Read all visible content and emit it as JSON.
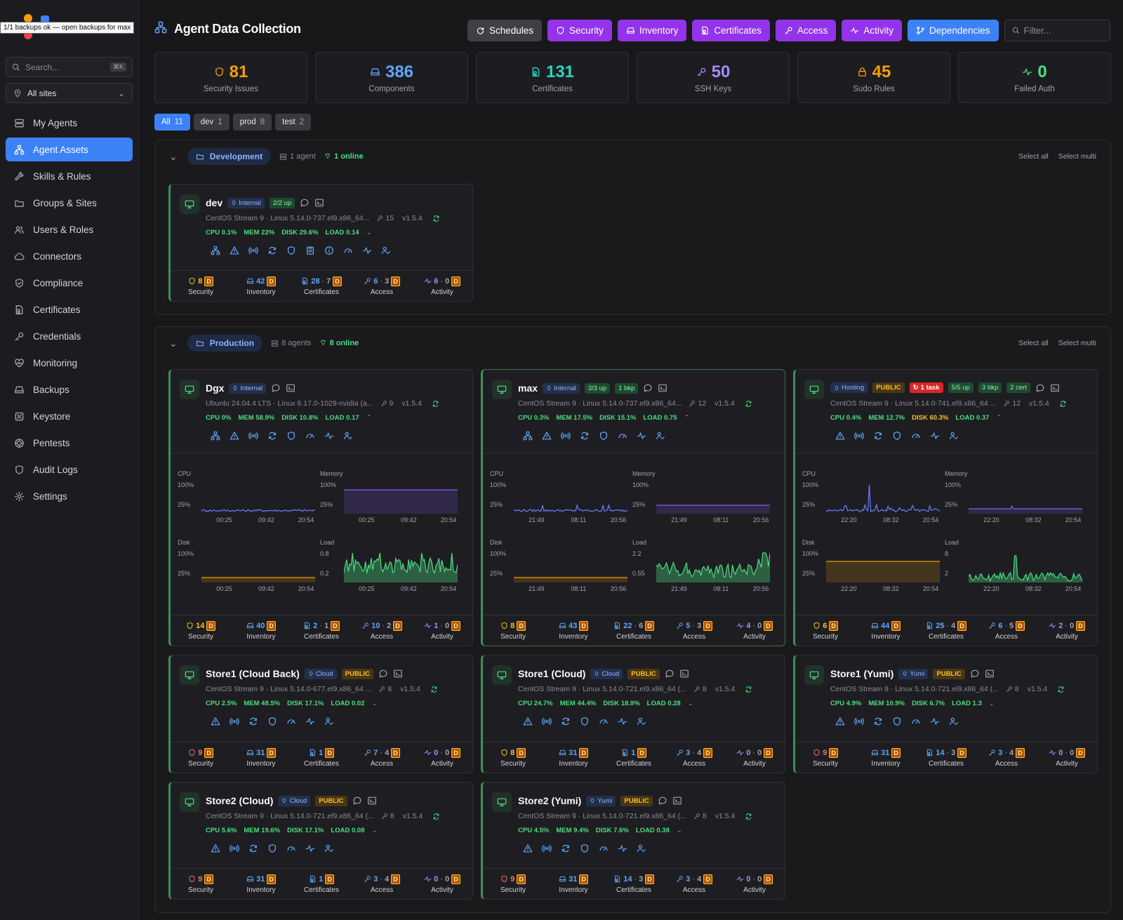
{
  "tooltip": "1/1 backups ok — open backups for max",
  "sidebar": {
    "search_placeholder": "Search...",
    "search_kbd": "⌘K",
    "site_select": "All sites",
    "items": [
      {
        "label": "My Agents",
        "icon": "server-icon",
        "active": false
      },
      {
        "label": "Agent Assets",
        "icon": "network-icon",
        "active": true
      },
      {
        "label": "Skills & Rules",
        "icon": "wrench-icon",
        "active": false
      },
      {
        "label": "Groups & Sites",
        "icon": "folder-icon",
        "active": false
      },
      {
        "label": "Users & Roles",
        "icon": "users-icon",
        "active": false
      },
      {
        "label": "Connectors",
        "icon": "cloud-icon",
        "active": false
      },
      {
        "label": "Compliance",
        "icon": "shield-check-icon",
        "active": false
      },
      {
        "label": "Certificates",
        "icon": "certificate-icon",
        "active": false
      },
      {
        "label": "Credentials",
        "icon": "key-icon",
        "active": false
      },
      {
        "label": "Monitoring",
        "icon": "heart-pulse-icon",
        "active": false
      },
      {
        "label": "Backups",
        "icon": "hard-drive-icon",
        "active": false
      },
      {
        "label": "Keystore",
        "icon": "keystore-icon",
        "active": false
      },
      {
        "label": "Pentests",
        "icon": "target-icon",
        "active": false
      },
      {
        "label": "Audit Logs",
        "icon": "audit-shield-icon",
        "active": false
      },
      {
        "label": "Settings",
        "icon": "gear-icon",
        "active": false
      }
    ]
  },
  "header": {
    "title": "Agent Data Collection",
    "buttons": [
      {
        "label": "Schedules",
        "color": "#3f3f46"
      },
      {
        "label": "Security",
        "color": "#9333ea"
      },
      {
        "label": "Inventory",
        "color": "#9333ea"
      },
      {
        "label": "Certificates",
        "color": "#9333ea"
      },
      {
        "label": "Access",
        "color": "#9333ea"
      },
      {
        "label": "Activity",
        "color": "#9333ea"
      },
      {
        "label": "Dependencies",
        "color": "#3b82f6"
      }
    ],
    "filter_placeholder": "Filter..."
  },
  "stats": [
    {
      "value": "81",
      "label": "Security Issues",
      "color": "#f59e0b",
      "icon": "shield-icon"
    },
    {
      "value": "386",
      "label": "Components",
      "color": "#60a5fa",
      "icon": "hard-drive-icon"
    },
    {
      "value": "131",
      "label": "Certificates",
      "color": "#2dd4bf",
      "icon": "certificate-icon"
    },
    {
      "value": "50",
      "label": "SSH Keys",
      "color": "#a78bfa",
      "icon": "key-icon"
    },
    {
      "value": "45",
      "label": "Sudo Rules",
      "color": "#f59e0b",
      "icon": "lock-icon"
    },
    {
      "value": "0",
      "label": "Failed Auth",
      "color": "#4ade80",
      "icon": "activity-icon"
    }
  ],
  "env_tabs": [
    {
      "label": "All",
      "count": "11",
      "active": true
    },
    {
      "label": "dev",
      "count": "1",
      "active": false
    },
    {
      "label": "prod",
      "count": "8",
      "active": false
    },
    {
      "label": "test",
      "count": "2",
      "active": false
    }
  ],
  "groups": [
    {
      "name": "Development",
      "agents": "1 agent",
      "online": "1 online",
      "select_all": "Select all",
      "select_multi": "Select multi"
    },
    {
      "name": "Production",
      "agents": "8 agents",
      "online": "8 online",
      "select_all": "Select all",
      "select_multi": "Select multi"
    }
  ],
  "metric_labels": [
    "Security",
    "Inventory",
    "Certificates",
    "Access",
    "Activity"
  ],
  "d_badge": "D",
  "chart_labels": {
    "cpu": "CPU",
    "memory": "Memory",
    "disk": "Disk",
    "load": "Load"
  },
  "agents": [
    {
      "name": "dev",
      "zone": "Internal",
      "badges": [
        {
          "text": "2/2 up",
          "kind": "up"
        }
      ],
      "os": "CentOS Stream 9 · Linux 5.14.0-737.el9.x86_64...",
      "keys": "15",
      "version": "v1.5.4",
      "cpu": "CPU 0.1%",
      "mem": "MEM 22%",
      "disk": "DISK 29.6%",
      "load": "LOAD 0.14",
      "disk_warn": false,
      "actions": [
        "network-icon",
        "alert-icon",
        "radio-icon",
        "refresh-icon",
        "shield-icon",
        "clipboard-icon",
        "info-icon",
        "gauge-icon",
        "activity-icon",
        "user-check-icon"
      ],
      "metrics": [
        {
          "a": "8",
          "b": "",
          "c": "#fbbf24"
        },
        {
          "a": "42",
          "b": "",
          "c": "#60a5fa"
        },
        {
          "a": "28",
          "b": "7",
          "c": "#60a5fa"
        },
        {
          "a": "6",
          "b": "3",
          "c": "#60a5fa"
        },
        {
          "a": "6",
          "b": "0",
          "c": "#a78bfa"
        }
      ]
    },
    {
      "name": "Dgx",
      "zone": "Internal",
      "badges": [],
      "os": "Ubuntu 24.04.4 LTS · Linux 6.17.0-1029-nvidia (a...",
      "keys": "9",
      "version": "v1.5.4",
      "cpu": "CPU 0%",
      "mem": "MEM 58.9%",
      "disk": "DISK 10.8%",
      "load": "LOAD 0.17",
      "disk_warn": false,
      "actions": [
        "network-icon",
        "alert-icon",
        "radio-icon",
        "refresh-icon",
        "shield-icon",
        "gauge-icon",
        "activity-icon",
        "user-check-icon"
      ],
      "charts": {
        "x": [
          "00:25",
          "09:42",
          "20:54"
        ],
        "load_y": [
          "0.8",
          "0.2"
        ]
      },
      "metrics": [
        {
          "a": "14",
          "b": "",
          "c": "#fbbf24"
        },
        {
          "a": "40",
          "b": "",
          "c": "#60a5fa"
        },
        {
          "a": "2",
          "b": "1",
          "c": "#60a5fa"
        },
        {
          "a": "10",
          "b": "2",
          "c": "#60a5fa"
        },
        {
          "a": "1",
          "b": "0",
          "c": "#a78bfa"
        }
      ]
    },
    {
      "name": "max",
      "zone": "Internal",
      "badges": [
        {
          "text": "3/3 up",
          "kind": "up"
        },
        {
          "text": "1 bkp",
          "kind": "up"
        }
      ],
      "os": "CentOS Stream 9 · Linux 5.14.0-737.el9.x86_64...",
      "keys": "12",
      "version": "v1.5.4",
      "cpu": "CPU 0.3%",
      "mem": "MEM 17.5%",
      "disk": "DISK 15.1%",
      "load": "LOAD 0.75",
      "disk_warn": false,
      "actions": [
        "network-icon",
        "alert-icon",
        "radio-icon",
        "refresh-icon",
        "shield-icon",
        "gauge-icon",
        "activity-icon",
        "user-check-icon"
      ],
      "charts": {
        "x": [
          "21:49",
          "08:11",
          "20:56"
        ],
        "load_y": [
          "2.2",
          "0.55"
        ]
      },
      "metrics": [
        {
          "a": "8",
          "b": "",
          "c": "#fbbf24"
        },
        {
          "a": "43",
          "b": "",
          "c": "#60a5fa"
        },
        {
          "a": "22",
          "b": "6",
          "c": "#60a5fa"
        },
        {
          "a": "5",
          "b": "3",
          "c": "#60a5fa"
        },
        {
          "a": "4",
          "b": "0",
          "c": "#a78bfa"
        }
      ]
    },
    {
      "name": "",
      "zone": "Hosting",
      "badges": [
        {
          "text": "PUBLIC",
          "kind": "pub"
        },
        {
          "text": "1 task",
          "kind": "task"
        },
        {
          "text": "5/5 up",
          "kind": "up"
        },
        {
          "text": "3 bkp",
          "kind": "up"
        },
        {
          "text": "2 cert",
          "kind": "up"
        }
      ],
      "os": "CentOS Stream 9 · Linux 5.14.0-741.el9.x86_64 ...",
      "keys": "12",
      "version": "v1.5.4",
      "cpu": "CPU 0.4%",
      "mem": "MEM 12.7%",
      "disk": "DISK 60.3%",
      "load": "LOAD 0.37",
      "disk_warn": true,
      "actions": [
        "alert-icon",
        "radio-icon",
        "refresh-icon",
        "shield-icon",
        "gauge-icon",
        "activity-icon",
        "user-check-icon"
      ],
      "charts": {
        "x": [
          "22:20",
          "08:32",
          "20:54"
        ],
        "load_y": [
          "8",
          "2"
        ]
      },
      "metrics": [
        {
          "a": "6",
          "b": "",
          "c": "#fbbf24"
        },
        {
          "a": "44",
          "b": "",
          "c": "#60a5fa"
        },
        {
          "a": "25",
          "b": "4",
          "c": "#60a5fa"
        },
        {
          "a": "6",
          "b": "5",
          "c": "#60a5fa"
        },
        {
          "a": "2",
          "b": "0",
          "c": "#a78bfa"
        }
      ]
    },
    {
      "name": "Store1 (Cloud Back)",
      "zone": "Cloud",
      "badges": [
        {
          "text": "PUBLIC",
          "kind": "pub"
        }
      ],
      "os": "CentOS Stream 9 · Linux 5.14.0-677.el9.x86_64 ...",
      "keys": "8",
      "version": "v1.5.4",
      "cpu": "CPU 2.5%",
      "mem": "MEM 48.5%",
      "disk": "DISK 17.1%",
      "load": "LOAD 0.02",
      "disk_warn": false,
      "actions": [
        "alert-icon",
        "radio-icon",
        "refresh-icon",
        "shield-icon",
        "gauge-icon",
        "activity-icon",
        "user-check-icon"
      ],
      "metrics": [
        {
          "a": "9",
          "b": "",
          "c": "#f87171"
        },
        {
          "a": "31",
          "b": "",
          "c": "#60a5fa"
        },
        {
          "a": "1",
          "b": "",
          "c": "#60a5fa"
        },
        {
          "a": "7",
          "b": "4",
          "c": "#60a5fa"
        },
        {
          "a": "0",
          "b": "0",
          "c": "#a78bfa"
        }
      ]
    },
    {
      "name": "Store1 (Cloud)",
      "zone": "Cloud",
      "badges": [
        {
          "text": "PUBLIC",
          "kind": "pub"
        }
      ],
      "os": "CentOS Stream 9 · Linux 5.14.0-721.el9.x86_64 (...",
      "keys": "8",
      "version": "v1.5.4",
      "cpu": "CPU 24.7%",
      "mem": "MEM 44.4%",
      "disk": "DISK 18.9%",
      "load": "LOAD 0.28",
      "disk_warn": false,
      "actions": [
        "alert-icon",
        "radio-icon",
        "refresh-icon",
        "shield-icon",
        "gauge-icon",
        "activity-icon",
        "user-check-icon"
      ],
      "metrics": [
        {
          "a": "8",
          "b": "",
          "c": "#fbbf24"
        },
        {
          "a": "31",
          "b": "",
          "c": "#60a5fa"
        },
        {
          "a": "1",
          "b": "",
          "c": "#60a5fa"
        },
        {
          "a": "3",
          "b": "4",
          "c": "#60a5fa"
        },
        {
          "a": "0",
          "b": "0",
          "c": "#a78bfa"
        }
      ]
    },
    {
      "name": "Store1 (Yumi)",
      "zone": "Yumi",
      "badges": [
        {
          "text": "PUBLIC",
          "kind": "pub"
        }
      ],
      "os": "CentOS Stream 9 · Linux 5.14.0-721.el9.x86_64 (...",
      "keys": "8",
      "version": "v1.5.4",
      "cpu": "CPU 4.9%",
      "mem": "MEM 10.9%",
      "disk": "DISK 6.7%",
      "load": "LOAD 1.3",
      "disk_warn": false,
      "actions": [
        "alert-icon",
        "radio-icon",
        "refresh-icon",
        "shield-icon",
        "gauge-icon",
        "activity-icon",
        "user-check-icon"
      ],
      "metrics": [
        {
          "a": "9",
          "b": "",
          "c": "#f87171"
        },
        {
          "a": "31",
          "b": "",
          "c": "#60a5fa"
        },
        {
          "a": "14",
          "b": "3",
          "c": "#60a5fa"
        },
        {
          "a": "3",
          "b": "4",
          "c": "#60a5fa"
        },
        {
          "a": "0",
          "b": "0",
          "c": "#a78bfa"
        }
      ]
    },
    {
      "name": "Store2 (Cloud)",
      "zone": "Cloud",
      "badges": [
        {
          "text": "PUBLIC",
          "kind": "pub"
        }
      ],
      "os": "CentOS Stream 9 · Linux 5.14.0-721.el9.x86_64 (...",
      "keys": "8",
      "version": "v1.5.4",
      "cpu": "CPU 5.6%",
      "mem": "MEM 19.6%",
      "disk": "DISK 17.1%",
      "load": "LOAD 0.08",
      "disk_warn": false,
      "actions": [
        "alert-icon",
        "radio-icon",
        "refresh-icon",
        "shield-icon",
        "gauge-icon",
        "activity-icon",
        "user-check-icon"
      ],
      "metrics": [
        {
          "a": "9",
          "b": "",
          "c": "#f87171"
        },
        {
          "a": "31",
          "b": "",
          "c": "#60a5fa"
        },
        {
          "a": "1",
          "b": "",
          "c": "#60a5fa"
        },
        {
          "a": "3",
          "b": "4",
          "c": "#60a5fa"
        },
        {
          "a": "0",
          "b": "0",
          "c": "#a78bfa"
        }
      ]
    },
    {
      "name": "Store2 (Yumi)",
      "zone": "Yumi",
      "badges": [
        {
          "text": "PUBLIC",
          "kind": "pub"
        }
      ],
      "os": "CentOS Stream 9 · Linux 5.14.0-721.el9.x86_64 (...",
      "keys": "8",
      "version": "v1.5.4",
      "cpu": "CPU 4.5%",
      "mem": "MEM 9.4%",
      "disk": "DISK 7.6%",
      "load": "LOAD 0.38",
      "disk_warn": false,
      "actions": [
        "alert-icon",
        "radio-icon",
        "refresh-icon",
        "shield-icon",
        "gauge-icon",
        "activity-icon",
        "user-check-icon"
      ],
      "metrics": [
        {
          "a": "9",
          "b": "",
          "c": "#f87171"
        },
        {
          "a": "31",
          "b": "",
          "c": "#60a5fa"
        },
        {
          "a": "14",
          "b": "3",
          "c": "#60a5fa"
        },
        {
          "a": "3",
          "b": "4",
          "c": "#60a5fa"
        },
        {
          "a": "0",
          "b": "0",
          "c": "#a78bfa"
        }
      ]
    }
  ],
  "chart_y": {
    "top": "100%",
    "mid": "25%"
  },
  "colors": {
    "cpu": "#6d7cff",
    "memory": "#8b5cf6",
    "disk": "#f59e0b",
    "load": "#4ade80",
    "accent": "#3b82f6",
    "purple": "#9333ea"
  }
}
